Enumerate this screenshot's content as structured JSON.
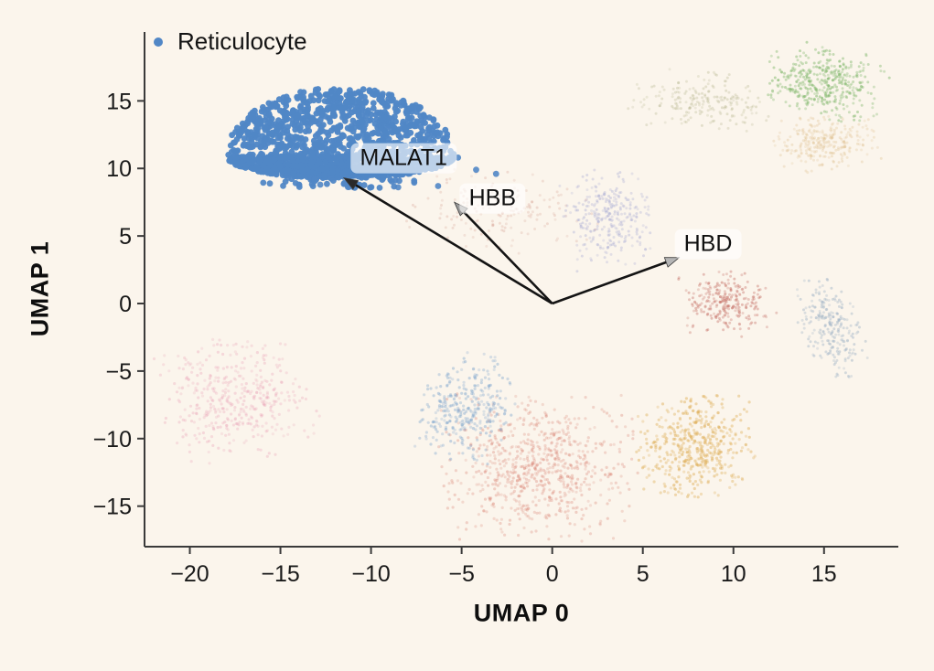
{
  "figure": {
    "background_color": "#FBF5EC",
    "axis_color": "#3a3a3a",
    "tick_text_color": "#1a1a1a",
    "arrow_color": "#141414"
  },
  "legend": {
    "items": [
      {
        "label": "Reticulocyte",
        "color": "#5187C6"
      }
    ]
  },
  "chart_data": {
    "type": "scatter",
    "title": "",
    "xlabel": "UMAP 0",
    "ylabel": "UMAP 1",
    "xlim": [
      -22.5,
      19.1
    ],
    "ylim": [
      -18.0,
      20.1
    ],
    "xticks": [
      -20,
      -15,
      -10,
      -5,
      0,
      5,
      10,
      15
    ],
    "yticks": [
      15,
      10,
      5,
      0,
      -5,
      -10,
      -15
    ],
    "grid": false,
    "legend_position": "upper-left-inside",
    "highlight_cluster": {
      "name": "Reticulocyte",
      "color": "#5187C6",
      "center": [
        -11.7,
        10.9
      ],
      "rx": 6.3,
      "ry": 5.1,
      "bottom_squash": 0.32,
      "count": 1700,
      "dot_radius_px": 3.4,
      "fringe_count": 45,
      "outliers": [
        [
          -8.5,
          8.6
        ],
        [
          -6.3,
          8.7
        ],
        [
          -5.2,
          10.8
        ],
        [
          -4.2,
          9.9
        ],
        [
          -3.1,
          9.6
        ],
        [
          -12.8,
          8.8
        ],
        [
          -14.6,
          9.3
        ],
        [
          -6.0,
          11.3
        ]
      ]
    },
    "background_clusters": [
      {
        "name": "pink-left",
        "color": "#E898B0",
        "alpha": 0.32,
        "center": [
          -17.5,
          -7.1
        ],
        "sx": 1.9,
        "sy": 2.1,
        "rot": 15,
        "count": 420,
        "dot_radius_px": 1.6,
        "clip": 2.2
      },
      {
        "name": "red-bottom",
        "color": "#D4705F",
        "alpha": 0.3,
        "center": [
          -0.8,
          -12.2
        ],
        "sx": 2.4,
        "sy": 2.4,
        "rot": 0,
        "count": 750,
        "dot_radius_px": 1.6,
        "clip": 2.3
      },
      {
        "name": "blue-bottom",
        "color": "#7AA3CC",
        "alpha": 0.42,
        "center": [
          -4.7,
          -7.6
        ],
        "sx": 1.15,
        "sy": 1.75,
        "rot": -12,
        "count": 330,
        "dot_radius_px": 1.6,
        "clip": 2.3
      },
      {
        "name": "gold-bottom",
        "color": "#DDAA4E",
        "alpha": 0.45,
        "center": [
          7.9,
          -10.6
        ],
        "sx": 1.5,
        "sy": 1.75,
        "rot": 0,
        "count": 480,
        "dot_radius_px": 1.6,
        "clip": 2.2
      },
      {
        "name": "dustyred-right",
        "color": "#C06258",
        "alpha": 0.4,
        "center": [
          9.7,
          0.0
        ],
        "sx": 1.1,
        "sy": 1.05,
        "rot": 0,
        "count": 260,
        "dot_radius_px": 1.5,
        "clip": 2.5
      },
      {
        "name": "bluegray-right",
        "color": "#9AB0C4",
        "alpha": 0.45,
        "center": [
          15.4,
          -1.8
        ],
        "sx": 0.75,
        "sy": 1.75,
        "rot": 18,
        "count": 240,
        "dot_radius_px": 1.5,
        "clip": 2.2
      },
      {
        "name": "lavender-mid",
        "color": "#9AA0D0",
        "alpha": 0.35,
        "center": [
          3.1,
          6.4
        ],
        "sx": 1.15,
        "sy": 1.7,
        "rot": 12,
        "count": 300,
        "dot_radius_px": 1.5,
        "clip": 2.2
      },
      {
        "name": "red-sparse-mid",
        "color": "#CC8878",
        "alpha": 0.25,
        "center": [
          -2.6,
          6.9
        ],
        "sx": 2.2,
        "sy": 1.4,
        "rot": -8,
        "count": 170,
        "dot_radius_px": 1.5,
        "clip": 2.4
      },
      {
        "name": "olive-top",
        "color": "#A8A97A",
        "alpha": 0.3,
        "center": [
          8.3,
          14.9
        ],
        "sx": 1.7,
        "sy": 0.95,
        "rot": -5,
        "count": 210,
        "dot_radius_px": 1.5,
        "clip": 2.4
      },
      {
        "name": "green-topright",
        "color": "#7CB566",
        "alpha": 0.5,
        "center": [
          15.0,
          16.3
        ],
        "sx": 1.5,
        "sy": 1.2,
        "rot": -15,
        "count": 400,
        "dot_radius_px": 1.5,
        "clip": 2.3
      },
      {
        "name": "wheat-topright",
        "color": "#DFC08E",
        "alpha": 0.35,
        "center": [
          15.1,
          11.9
        ],
        "sx": 1.3,
        "sy": 0.95,
        "rot": 10,
        "count": 280,
        "dot_radius_px": 1.5,
        "clip": 2.2
      }
    ],
    "arrows": [
      {
        "label": "MALAT1",
        "from": [
          0,
          0
        ],
        "to": [
          -11.5,
          9.3
        ],
        "label_at": [
          -8.2,
          10.75
        ],
        "head_color": "#2a2a2a"
      },
      {
        "label": "HBB",
        "from": [
          0,
          0
        ],
        "to": [
          -5.4,
          7.5
        ],
        "label_at": [
          -3.3,
          7.75
        ],
        "head_color": "#9a9a9a"
      },
      {
        "label": "HBD",
        "from": [
          0,
          0
        ],
        "to": [
          7.0,
          3.4
        ],
        "label_at": [
          8.6,
          4.4
        ],
        "head_color": "#b5b5b5"
      }
    ]
  }
}
